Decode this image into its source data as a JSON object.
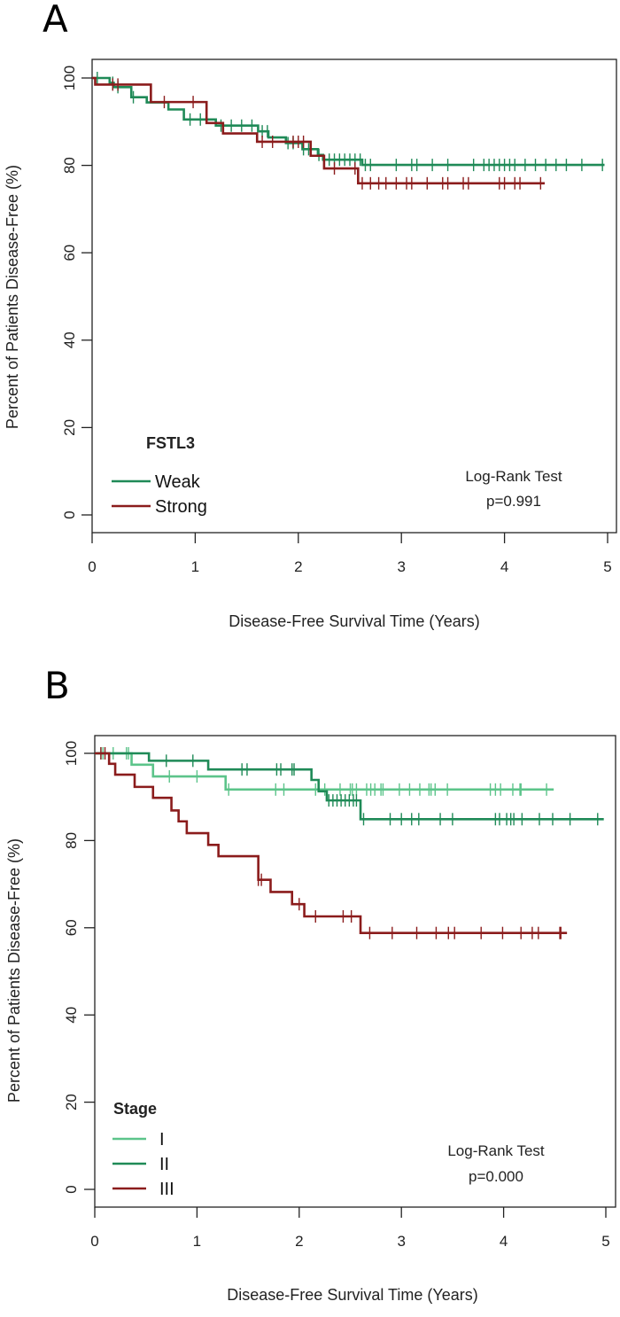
{
  "chart_data": [
    {
      "type": "line",
      "subtype": "kaplan-meier",
      "panel_label": "A",
      "xlabel": "Disease-Free Survival Time (Years)",
      "ylabel": "Percent of Patients Disease-Free (%)",
      "xlim": [
        0,
        5
      ],
      "ylim": [
        0,
        100
      ],
      "xticks": [
        "0",
        "1",
        "2",
        "3",
        "4",
        "5"
      ],
      "yticks": [
        "0",
        "20",
        "40",
        "60",
        "80",
        "100"
      ],
      "legend_title": "FSTL3",
      "legend_position": "bottom-left",
      "annotation": [
        "Log-Rank Test",
        "p=0.991"
      ],
      "series": [
        {
          "name": "Weak",
          "color": "#1f8a57",
          "steps": [
            [
              0,
              100
            ],
            [
              0.17,
              98.9
            ],
            [
              0.21,
              97.9
            ],
            [
              0.38,
              95.6
            ],
            [
              0.53,
              94.4
            ],
            [
              0.74,
              92.8
            ],
            [
              0.89,
              90.5
            ],
            [
              1.2,
              89.1
            ],
            [
              1.61,
              87.8
            ],
            [
              1.71,
              86.4
            ],
            [
              1.88,
              85.1
            ],
            [
              2.04,
              83.7
            ],
            [
              2.19,
              82.4
            ],
            [
              2.24,
              81.3
            ],
            [
              2.62,
              80.1
            ]
          ],
          "end": 4.97,
          "censored": [
            0.05,
            0.2,
            0.25,
            0.4,
            0.95,
            1.05,
            1.25,
            1.35,
            1.45,
            1.55,
            1.65,
            1.7,
            1.9,
            1.95,
            2.05,
            2.1,
            2.2,
            2.3,
            2.35,
            2.4,
            2.45,
            2.5,
            2.55,
            2.6,
            2.65,
            2.7,
            2.95,
            3.1,
            3.15,
            3.3,
            3.45,
            3.7,
            3.8,
            3.85,
            3.9,
            3.95,
            4.0,
            4.05,
            4.1,
            4.2,
            4.3,
            4.4,
            4.5,
            4.6,
            4.75,
            4.95
          ]
        },
        {
          "name": "Strong",
          "color": "#8b1c1c",
          "steps": [
            [
              0,
              100
            ],
            [
              0.03,
              98.5
            ],
            [
              0.57,
              94.5
            ],
            [
              1.11,
              89.7
            ],
            [
              1.27,
              87.3
            ],
            [
              1.6,
              85.4
            ],
            [
              2.12,
              82.2
            ],
            [
              2.25,
              79.3
            ],
            [
              2.58,
              75.9
            ]
          ],
          "end": 4.39,
          "censored": [
            0.2,
            0.25,
            0.7,
            0.98,
            1.65,
            1.75,
            1.95,
            2.0,
            2.05,
            2.35,
            2.55,
            2.62,
            2.7,
            2.78,
            2.85,
            2.95,
            3.05,
            3.1,
            3.25,
            3.4,
            3.45,
            3.6,
            3.65,
            3.95,
            4.0,
            4.1,
            4.15,
            4.35
          ]
        }
      ]
    },
    {
      "type": "line",
      "subtype": "kaplan-meier",
      "panel_label": "B",
      "xlabel": "Disease-Free Survival Time (Years)",
      "ylabel": "Percent of Patients Disease-Free (%)",
      "xlim": [
        0,
        5
      ],
      "ylim": [
        0,
        100
      ],
      "xticks": [
        "0",
        "1",
        "2",
        "3",
        "4",
        "5"
      ],
      "yticks": [
        "0",
        "20",
        "40",
        "60",
        "80",
        "100"
      ],
      "legend_title": "Stage",
      "legend_position": "bottom-left",
      "annotation": [
        "Log-Rank Test",
        "p=0.000"
      ],
      "series": [
        {
          "name": "I",
          "color": "#5cc48a",
          "steps": [
            [
              0,
              100
            ],
            [
              0.36,
              97.4
            ],
            [
              0.57,
              94.7
            ],
            [
              1.28,
              91.7
            ]
          ],
          "end": 4.49,
          "censored": [
            0.06,
            0.08,
            0.18,
            0.31,
            0.33,
            0.73,
            1.0,
            1.31,
            1.77,
            1.85,
            2.16,
            2.25,
            2.4,
            2.5,
            2.52,
            2.56,
            2.66,
            2.7,
            2.74,
            2.8,
            2.82,
            2.98,
            3.08,
            3.18,
            3.27,
            3.29,
            3.33,
            3.45,
            3.87,
            3.92,
            3.97,
            4.09,
            4.16,
            4.17,
            4.42
          ]
        },
        {
          "name": "II",
          "color": "#1f8a57",
          "steps": [
            [
              0,
              100
            ],
            [
              0.53,
              98.3
            ],
            [
              1.11,
              96.3
            ],
            [
              2.12,
              93.9
            ],
            [
              2.19,
              91.3
            ],
            [
              2.27,
              89.2
            ],
            [
              2.6,
              84.9
            ]
          ],
          "end": 4.98,
          "censored": [
            0.7,
            0.96,
            1.44,
            1.49,
            1.78,
            1.82,
            1.93,
            1.95,
            2.29,
            2.33,
            2.37,
            2.41,
            2.45,
            2.49,
            2.53,
            2.56,
            2.63,
            2.89,
            3.0,
            3.1,
            3.17,
            3.38,
            3.5,
            3.92,
            3.96,
            4.03,
            4.07,
            4.1,
            4.18,
            4.35,
            4.48,
            4.65,
            4.92
          ]
        },
        {
          "name": "III",
          "color": "#8b1c1c",
          "steps": [
            [
              0,
              100
            ],
            [
              0.14,
              97.6
            ],
            [
              0.2,
              95.1
            ],
            [
              0.39,
              92.3
            ],
            [
              0.57,
              89.8
            ],
            [
              0.75,
              86.9
            ],
            [
              0.82,
              84.4
            ],
            [
              0.9,
              81.7
            ],
            [
              1.11,
              79.0
            ],
            [
              1.21,
              76.4
            ],
            [
              1.6,
              71.0
            ],
            [
              1.72,
              68.2
            ],
            [
              1.93,
              65.4
            ],
            [
              2.05,
              62.6
            ],
            [
              2.6,
              58.8
            ]
          ],
          "end": 4.62,
          "censored": [
            0.06,
            0.1,
            1.6,
            1.63,
            2.0,
            2.16,
            2.43,
            2.51,
            2.69,
            2.91,
            3.15,
            3.34,
            3.46,
            3.52,
            3.78,
            3.99,
            4.17,
            4.28,
            4.34,
            4.55,
            4.56
          ]
        }
      ]
    }
  ]
}
